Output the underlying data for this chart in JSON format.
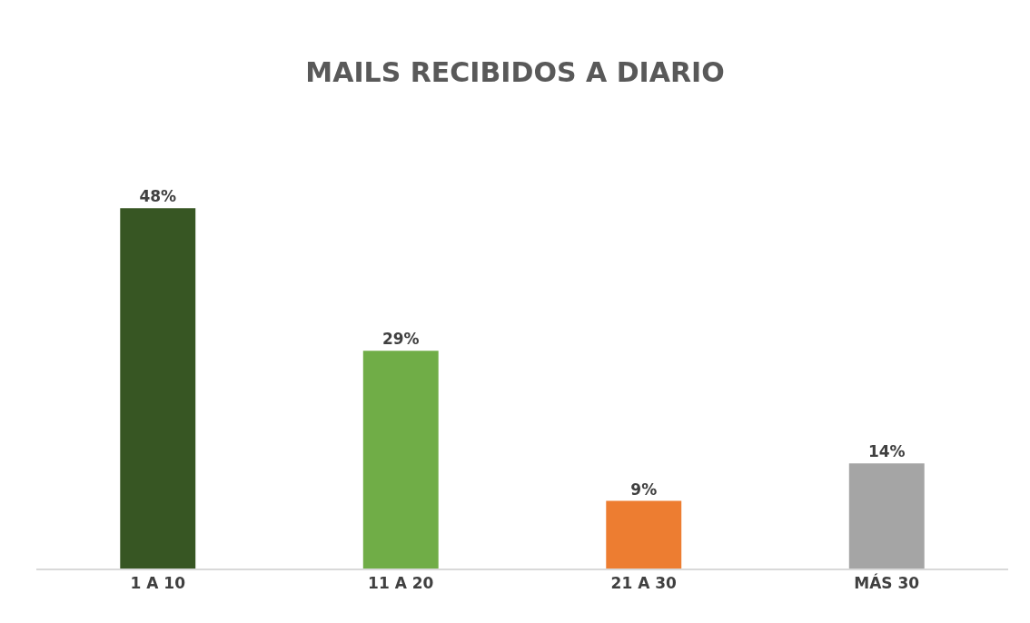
{
  "chart_data": {
    "type": "bar",
    "title": "MAILS RECIBIDOS A DIARIO",
    "categories": [
      "1 A 10",
      "11 A 20",
      "21 A 30",
      "MÁS 30"
    ],
    "values": [
      48,
      29,
      9,
      14
    ],
    "colors": [
      "#375623",
      "#70ad47",
      "#ed7d31",
      "#a5a5a5"
    ],
    "value_labels": [
      "48%",
      "29%",
      "9%",
      "14%"
    ],
    "tick_labels": "x"
  }
}
